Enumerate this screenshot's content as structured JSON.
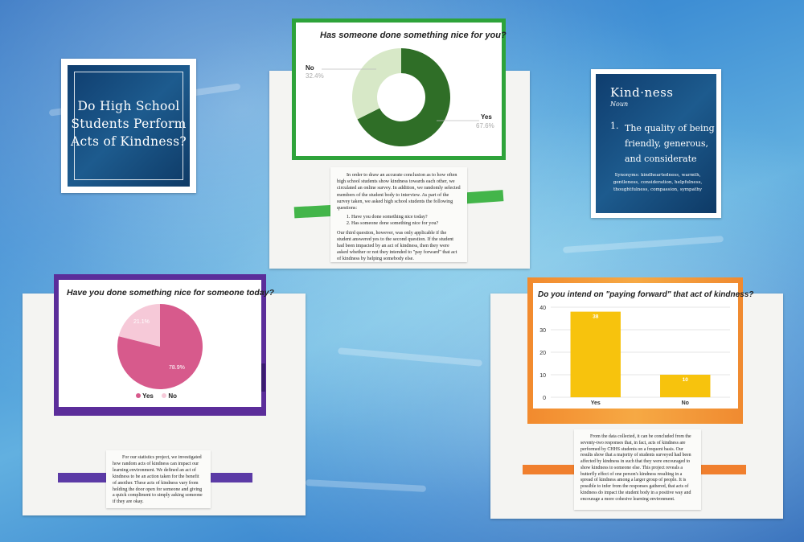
{
  "title_card": {
    "lines": [
      "Do High School",
      "Students Perform",
      "Acts of Kindness?"
    ]
  },
  "definition_card": {
    "word": "Kind·ness",
    "pos": "Noun",
    "number": "1.",
    "definition_lines": [
      "The quality of being",
      "friendly, generous,",
      "and considerate"
    ],
    "synonyms_lines": [
      "Synonyms: kindheartedness, warmth,",
      "gentleness, consideration, helpfulness,",
      "thoughtfulness, compassion, sympathy"
    ]
  },
  "donut_card": {
    "title": "Has someone done something nice for you?",
    "no_label": "No",
    "no_value": "32.4%",
    "yes_label": "Yes",
    "yes_value": "67.6%",
    "colors": {
      "yes": "#2f6e27",
      "no": "#d7e8c7",
      "frame": "#2ea33a"
    }
  },
  "pie_card": {
    "title": "Have you done something nice for someone today?",
    "yes_value": "78.9%",
    "no_value": "21.1%",
    "legend_yes": "Yes",
    "legend_no": "No",
    "colors": {
      "yes": "#d75a8c",
      "no": "#f6c9d8",
      "frame": "#5b2d9a"
    }
  },
  "bar_card": {
    "title": "Do you intend on \"paying forward\" that act of kindness?",
    "colors": {
      "bar": "#f7c30d",
      "frame": "#f39a34"
    }
  },
  "chart_data": [
    {
      "type": "pie",
      "title": "Has someone done something nice for you?",
      "categories": [
        "Yes",
        "No"
      ],
      "values": [
        67.6,
        32.4
      ]
    },
    {
      "type": "pie",
      "title": "Have you done something nice for someone today?",
      "categories": [
        "Yes",
        "No"
      ],
      "values": [
        78.9,
        21.1
      ],
      "legend": "bottom"
    },
    {
      "type": "bar",
      "title": "Do you intend on \"paying forward\" that act of kindness?",
      "categories": [
        "Yes",
        "No"
      ],
      "values": [
        38,
        10
      ],
      "ylim": [
        0,
        40
      ],
      "yticks": [
        "0",
        "10",
        "20",
        "30",
        "40"
      ],
      "data_labels": [
        "38",
        "10"
      ],
      "grid": true
    }
  ],
  "note_top": {
    "p1": "In order to draw an accurate conclusion as to how often high school students show kindness towards each other, we circulated an online survey. In addition, we randomly selected members of the student body to interview. As part of the survey taken, we asked high school students the following questions:",
    "q1": "Have you done something nice today?",
    "q2": "Has someone done something nice for you?",
    "p2": "Our third question, however, was only applicable if the student answered yes to the second question. If the student had been impacted by an act of kindness, then they were asked whether or not they intended to \"pay forward\" that act of kindness by helping somebody else."
  },
  "note_left": {
    "p1": "For our statistics project, we investigated how random acts of kindness can impact our learning environment. We defined an act of kindness to be an action taken for the benefit of another. These acts of kindness vary from holding the door open for someone and giving a quick compliment to simply asking someone if they are okay."
  },
  "note_right": {
    "p1": "From the data collected, it can be concluded from the seventy-two responses that, in fact, acts of kindness are performed by CHHS students on a frequent basis. Our results show that a majority of students surveyed had been affected by kindness in such that they were encouraged to show kindness to someone else. This project reveals a butterfly effect of one person's kindness resulting in a spread of kindness among a larger group of people. It is possible to infer from the responses gathered, that acts of kindness do impact the student body in a positive way and encourage a more cohesive learning environment."
  }
}
